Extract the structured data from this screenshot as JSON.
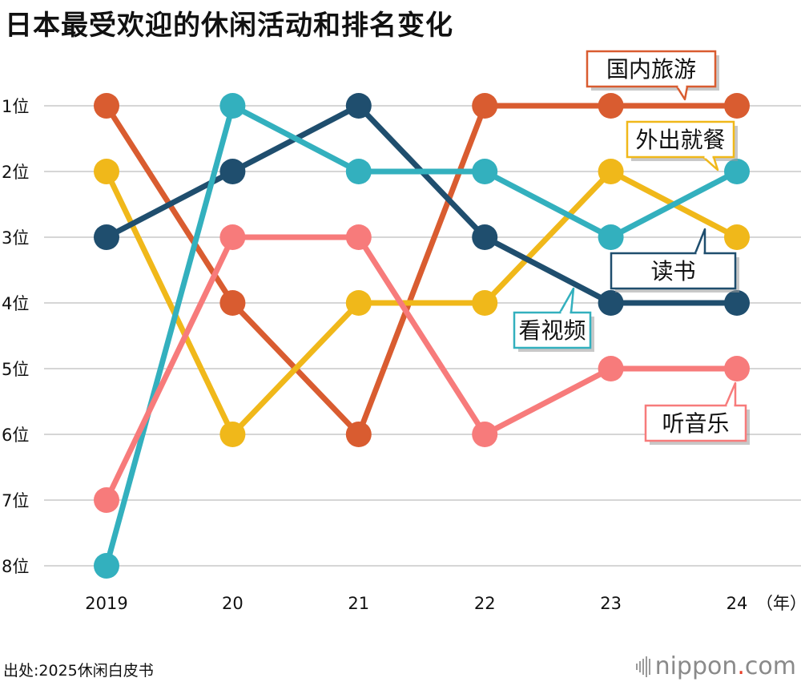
{
  "title": "日本最受欢迎的休闲活动和排名变化",
  "source": "出处:2025休闲白皮书",
  "brand": {
    "name": "nippon",
    "dot": ".",
    "tld": "com"
  },
  "chart_data": {
    "type": "line",
    "x": [
      "2019",
      "20",
      "21",
      "22",
      "23",
      "24"
    ],
    "x_unit": "（年）",
    "y_ticks": [
      "1位",
      "2位",
      "3位",
      "4位",
      "5位",
      "6位",
      "7位",
      "8位"
    ],
    "ylim": [
      1,
      8
    ],
    "y_inverted": true,
    "grid": true,
    "series": [
      {
        "name": "国内旅游",
        "color": "#d95c30",
        "values": [
          1,
          4,
          6,
          1,
          1,
          1
        ]
      },
      {
        "name": "外出就餐",
        "color": "#f0b81a",
        "values": [
          2,
          6,
          4,
          4,
          2,
          3
        ]
      },
      {
        "name": "读书",
        "color": "#1f4e6e",
        "values": [
          3,
          2,
          1,
          3,
          4,
          4
        ]
      },
      {
        "name": "看视频",
        "color": "#33b0be",
        "values": [
          8,
          1,
          2,
          2,
          3,
          2
        ]
      },
      {
        "name": "听音乐",
        "color": "#f77b7b",
        "values": [
          7,
          3,
          3,
          6,
          5,
          5
        ]
      }
    ]
  }
}
